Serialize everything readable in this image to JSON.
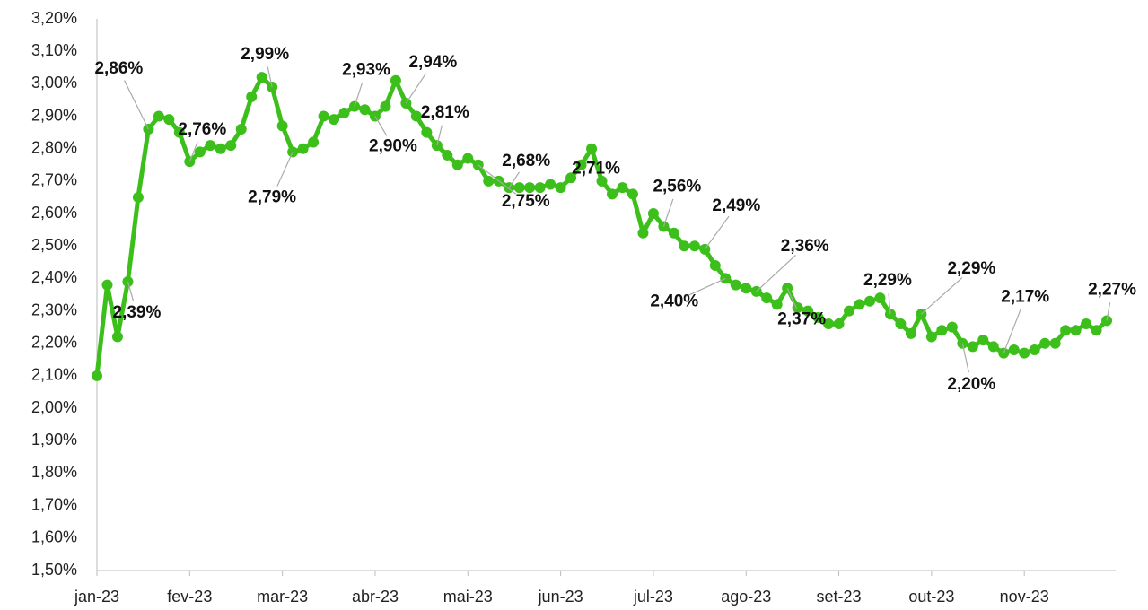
{
  "chart_data": {
    "type": "line",
    "categories": [
      "jan-23",
      null,
      null,
      null,
      null,
      null,
      null,
      null,
      null,
      "fev-23",
      null,
      null,
      null,
      null,
      null,
      null,
      null,
      null,
      "mar-23",
      null,
      null,
      null,
      null,
      null,
      null,
      null,
      null,
      "abr-23",
      null,
      null,
      null,
      null,
      null,
      null,
      null,
      null,
      "mai-23",
      null,
      null,
      null,
      null,
      null,
      null,
      null,
      null,
      "jun-23",
      null,
      null,
      null,
      null,
      null,
      null,
      null,
      null,
      "jul-23",
      null,
      null,
      null,
      null,
      null,
      null,
      null,
      null,
      "ago-23",
      null,
      null,
      null,
      null,
      null,
      null,
      null,
      null,
      "set-23",
      null,
      null,
      null,
      null,
      null,
      null,
      null,
      null,
      "out-23",
      null,
      null,
      null,
      null,
      null,
      null,
      null,
      null,
      "nov-23",
      null,
      null,
      null,
      null,
      null,
      null,
      null,
      null
    ],
    "series": [
      {
        "color": "#3cbf1a",
        "values": [
          2.1,
          2.38,
          2.22,
          2.39,
          2.65,
          2.86,
          2.9,
          2.89,
          2.85,
          2.76,
          2.79,
          2.81,
          2.8,
          2.81,
          2.86,
          2.96,
          3.02,
          2.99,
          2.87,
          2.79,
          2.8,
          2.82,
          2.9,
          2.89,
          2.91,
          2.93,
          2.92,
          2.9,
          2.93,
          3.01,
          2.94,
          2.9,
          2.85,
          2.81,
          2.78,
          2.75,
          2.77,
          2.75,
          2.7,
          2.7,
          2.68,
          2.68,
          2.68,
          2.68,
          2.69,
          2.68,
          2.71,
          2.75,
          2.8,
          2.7,
          2.66,
          2.68,
          2.66,
          2.54,
          2.6,
          2.56,
          2.54,
          2.5,
          2.5,
          2.49,
          2.44,
          2.4,
          2.38,
          2.37,
          2.36,
          2.34,
          2.32,
          2.37,
          2.31,
          2.3,
          2.28,
          2.26,
          2.26,
          2.3,
          2.32,
          2.33,
          2.34,
          2.29,
          2.26,
          2.23,
          2.29,
          2.22,
          2.24,
          2.25,
          2.2,
          2.19,
          2.21,
          2.19,
          2.17,
          2.18,
          2.17,
          2.18,
          2.2,
          2.2,
          2.24,
          2.24,
          2.26,
          2.24,
          2.27
        ],
        "value_labels": [
          null,
          null,
          null,
          "2,39%",
          null,
          "2,86%",
          null,
          null,
          null,
          "2,76%",
          null,
          null,
          null,
          null,
          null,
          null,
          null,
          "2,99%",
          null,
          "2,79%",
          null,
          null,
          null,
          null,
          null,
          "2,93%",
          null,
          "2,90%",
          null,
          null,
          "2,94%",
          null,
          null,
          "2,81%",
          null,
          null,
          null,
          "2,75%",
          null,
          null,
          "2,68%",
          null,
          null,
          null,
          null,
          null,
          "2,71%",
          null,
          null,
          null,
          null,
          null,
          null,
          null,
          null,
          "2,56%",
          null,
          null,
          null,
          "2,49%",
          null,
          "2,40%",
          null,
          null,
          "2,36%",
          null,
          null,
          "2,37%",
          null,
          null,
          null,
          null,
          null,
          null,
          null,
          null,
          null,
          "2,29%",
          null,
          null,
          "2,29%",
          null,
          null,
          null,
          "2,20%",
          null,
          null,
          null,
          "2,17%",
          null,
          null,
          null,
          null,
          null,
          null,
          null,
          null,
          null,
          "2,27%"
        ]
      }
    ],
    "ylim": [
      1.5,
      3.2
    ],
    "yticks": [
      {
        "value": 1.5,
        "label": "1,50%"
      },
      {
        "value": 1.6,
        "label": "1,60%"
      },
      {
        "value": 1.7,
        "label": "1,70%"
      },
      {
        "value": 1.8,
        "label": "1,80%"
      },
      {
        "value": 1.9,
        "label": "1,90%"
      },
      {
        "value": 2.0,
        "label": "2,00%"
      },
      {
        "value": 2.1,
        "label": "2,10%"
      },
      {
        "value": 2.2,
        "label": "2,20%"
      },
      {
        "value": 2.3,
        "label": "2,30%"
      },
      {
        "value": 2.4,
        "label": "2,40%"
      },
      {
        "value": 2.5,
        "label": "2,50%"
      },
      {
        "value": 2.6,
        "label": "2,60%"
      },
      {
        "value": 2.7,
        "label": "2,70%"
      },
      {
        "value": 2.8,
        "label": "2,80%"
      },
      {
        "value": 2.9,
        "label": "2,90%"
      },
      {
        "value": 3.0,
        "label": "3,00%"
      },
      {
        "value": 3.1,
        "label": "3,10%"
      },
      {
        "value": 3.2,
        "label": "3,20%"
      }
    ],
    "grid": false
  }
}
